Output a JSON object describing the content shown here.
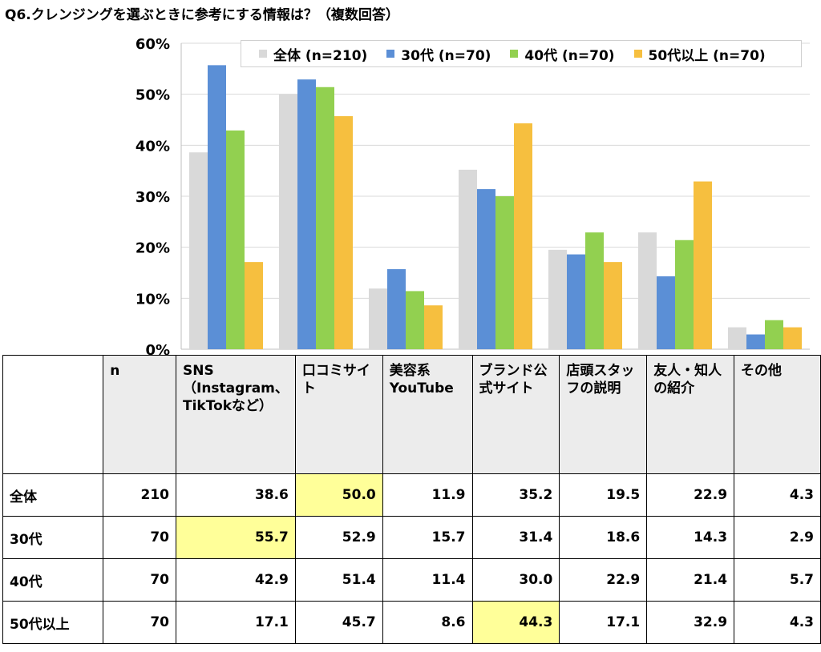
{
  "title": "Q6.クレンジングを選ぶときに参考にする情報は？（複数回答）",
  "chart_data": {
    "type": "bar",
    "categories": [
      "SNS（Instagram、TikTokなど）",
      "口コミサイト",
      "美容系YouTube",
      "ブランド公式サイト",
      "店頭スタッフの説明",
      "友人・知人の紹介",
      "その他"
    ],
    "series": [
      {
        "name": "全体 (n=210)",
        "color": "#d9d9d9",
        "values": [
          38.6,
          50.0,
          11.9,
          35.2,
          19.5,
          22.9,
          4.3
        ]
      },
      {
        "name": "30代 (n=70)",
        "color": "#5b8fd6",
        "values": [
          55.7,
          52.9,
          15.7,
          31.4,
          18.6,
          14.3,
          2.9
        ]
      },
      {
        "name": "40代 (n=70)",
        "color": "#92d050",
        "values": [
          42.9,
          51.4,
          11.4,
          30.0,
          22.9,
          21.4,
          5.7
        ]
      },
      {
        "name": "50代以上 (n=70)",
        "color": "#f6bf3f",
        "values": [
          17.1,
          45.7,
          8.6,
          44.3,
          17.1,
          32.9,
          4.3
        ]
      }
    ],
    "ylim": [
      0,
      60
    ],
    "yticks": [
      "0%",
      "10%",
      "20%",
      "30%",
      "40%",
      "50%",
      "60%"
    ],
    "grid": true,
    "legend_position": "top-right"
  },
  "table": {
    "n_header": "n",
    "category_headers": [
      "SNS（Instagram、TikTokなど）",
      "口コミサイト",
      "美容系YouTube",
      "ブランド公式サイト",
      "店頭スタッフの説明",
      "友人・知人の紹介",
      "その他"
    ],
    "rows": [
      {
        "label": "全体",
        "n": "210",
        "values": [
          "38.6",
          "50.0",
          "11.9",
          "35.2",
          "19.5",
          "22.9",
          "4.3"
        ],
        "highlight": 1
      },
      {
        "label": "30代",
        "n": "70",
        "values": [
          "55.7",
          "52.9",
          "15.7",
          "31.4",
          "18.6",
          "14.3",
          "2.9"
        ],
        "highlight": 0
      },
      {
        "label": "40代",
        "n": "70",
        "values": [
          "42.9",
          "51.4",
          "11.4",
          "30.0",
          "22.9",
          "21.4",
          "5.7"
        ],
        "highlight": -1
      },
      {
        "label": "50代以上",
        "n": "70",
        "values": [
          "17.1",
          "45.7",
          "8.6",
          "44.3",
          "17.1",
          "32.9",
          "4.3"
        ],
        "highlight": 3
      }
    ],
    "highlight_color": "#ffff99"
  }
}
